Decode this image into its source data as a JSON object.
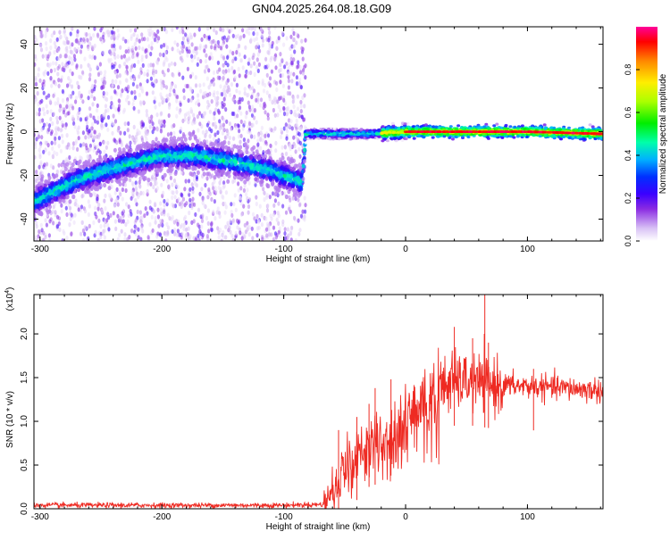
{
  "title": "GN04.2025.264.08.18.G09",
  "chart_data": [
    {
      "type": "heatmap",
      "xlabel": "Height of straight line (km)",
      "ylabel": "Frequency (Hz)",
      "xlim": [
        -305,
        162
      ],
      "ylim": [
        -50,
        48
      ],
      "xticks": [
        -300,
        -200,
        -100,
        0,
        100
      ],
      "yticks": [
        -40,
        -20,
        0,
        20,
        40
      ],
      "colorbar": {
        "label": "Normalized spectral amplitude",
        "range": [
          0,
          1
        ],
        "ticks": [
          0.0,
          0.2,
          0.4,
          0.6,
          0.8
        ],
        "colormap": [
          "#ffffff",
          "#d0b0f0",
          "#8a2be2",
          "#4400ff",
          "#0000ff",
          "#00ccff",
          "#00ff88",
          "#00dd00",
          "#ccff00",
          "#ffdd00",
          "#ff6600",
          "#ff0000",
          "#ff00aa"
        ]
      },
      "ridge": {
        "description_free_points": [
          {
            "x": -305,
            "y": -32
          },
          {
            "x": -270,
            "y": -22
          },
          {
            "x": -230,
            "y": -15
          },
          {
            "x": -200,
            "y": -11
          },
          {
            "x": -170,
            "y": -11
          },
          {
            "x": -140,
            "y": -14
          },
          {
            "x": -110,
            "y": -18
          },
          {
            "x": -85,
            "y": -23
          },
          {
            "x": -82,
            "y": -1
          },
          {
            "x": -30,
            "y": -1
          },
          {
            "x": 0,
            "y": 0
          },
          {
            "x": 50,
            "y": 0
          },
          {
            "x": 100,
            "y": 0
          },
          {
            "x": 162,
            "y": -1
          }
        ]
      }
    },
    {
      "type": "line",
      "xlabel": "Height of straight line (km)",
      "ylabel": "SNR (10 * v/v)",
      "multiplier": "(x10",
      "multiplier_exp": "4",
      "xlim": [
        -305,
        162
      ],
      "ylim": [
        0,
        2.45
      ],
      "xticks": [
        -300,
        -200,
        -100,
        0,
        100
      ],
      "yticks": [
        0.0,
        0.5,
        1.0,
        1.5,
        2.0
      ],
      "color": "#ee2a22",
      "series": [
        {
          "values_envelope": [
            {
              "x": -305,
              "y": 0.04
            },
            {
              "x": -100,
              "y": 0.04
            },
            {
              "x": -68,
              "y": 0.05
            },
            {
              "x": -62,
              "y": 0.25
            },
            {
              "x": -50,
              "y": 0.45
            },
            {
              "x": -40,
              "y": 0.6
            },
            {
              "x": -30,
              "y": 0.75
            },
            {
              "x": -20,
              "y": 0.8
            },
            {
              "x": -10,
              "y": 0.9
            },
            {
              "x": 0,
              "y": 1.05
            },
            {
              "x": 10,
              "y": 1.2
            },
            {
              "x": 20,
              "y": 1.3
            },
            {
              "x": 30,
              "y": 1.4
            },
            {
              "x": 40,
              "y": 1.45
            },
            {
              "x": 55,
              "y": 1.45
            },
            {
              "x": 70,
              "y": 1.42
            },
            {
              "x": 100,
              "y": 1.4
            },
            {
              "x": 130,
              "y": 1.38
            },
            {
              "x": 162,
              "y": 1.35
            }
          ],
          "spikes": [
            {
              "x": -55,
              "y": 0.9
            },
            {
              "x": -40,
              "y": 1.05
            },
            {
              "x": -30,
              "y": 1.2
            },
            {
              "x": -25,
              "y": 1.38
            },
            {
              "x": -12,
              "y": 1.48
            },
            {
              "x": 40,
              "y": 2.08
            },
            {
              "x": 55,
              "y": 1.95
            },
            {
              "x": 65,
              "y": 2.45
            },
            {
              "x": 68,
              "y": 1.9
            },
            {
              "x": 105,
              "y": 1.6
            }
          ]
        }
      ]
    }
  ]
}
